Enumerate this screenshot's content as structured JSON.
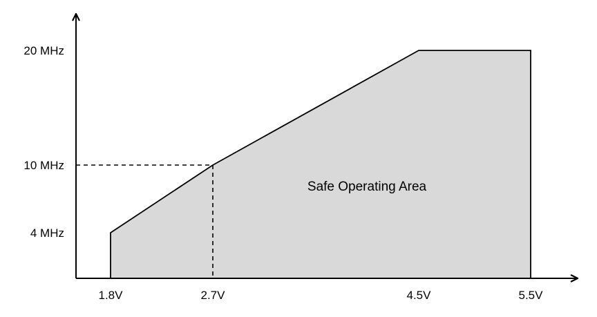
{
  "chart_data": {
    "type": "area",
    "title": "",
    "xlabel": "",
    "ylabel": "",
    "x_ticks": [
      {
        "value": 1.8,
        "label": "1.8V"
      },
      {
        "value": 2.7,
        "label": "2.7V"
      },
      {
        "value": 4.5,
        "label": "4.5V"
      },
      {
        "value": 5.5,
        "label": "5.5V"
      }
    ],
    "y_ticks": [
      {
        "value": 4,
        "label": "4 MHz"
      },
      {
        "value": 10,
        "label": "10 MHz"
      },
      {
        "value": 20,
        "label": "20 MHz"
      }
    ],
    "boundary": {
      "x": [
        1.8,
        2.7,
        4.5,
        5.5
      ],
      "y": [
        4,
        10,
        20,
        20
      ]
    },
    "reference_lines": [
      {
        "x": 2.7,
        "y": 10,
        "style": "dashed"
      }
    ],
    "region_label": "Safe Operating Area",
    "colors": {
      "fill": "#d9d9d9",
      "stroke": "#000000",
      "axis": "#000000"
    },
    "grid": false,
    "legend": "none"
  }
}
